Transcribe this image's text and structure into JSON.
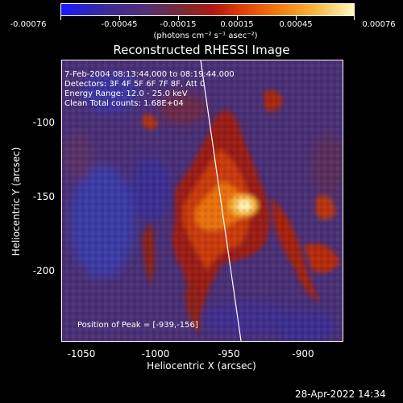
{
  "colorbar": {
    "ticks": [
      "-0.00076",
      "-0.00045",
      "-0.00015",
      "0.00015",
      "0.00045",
      "0.00076"
    ],
    "unit_label": "(photons cm⁻² s⁻¹ asec⁻²)"
  },
  "title": "Reconstructed RHESSI Image",
  "info": {
    "line1": "7-Feb-2004 08:13:44.000 to 08:19:44.000",
    "line2": "Detectors: 3F 4F 5F 6F 7F 8F, Att 0",
    "line3": "Energy Range: 12.0 - 25.0 keV",
    "line4": "Clean     Total counts: 1.68E+04"
  },
  "peak_label": "Position of Peak = [-939,-156]",
  "y_axis": {
    "label": "Heliocentric Y (arcsec)",
    "ticks": [
      "-100",
      "-150",
      "-200"
    ]
  },
  "x_axis": {
    "label": "Heliocentric X (arcsec)",
    "ticks": [
      "-1050",
      "-1000",
      "-950",
      "-900"
    ]
  },
  "datestamp": "28-Apr-2022 14:34"
}
